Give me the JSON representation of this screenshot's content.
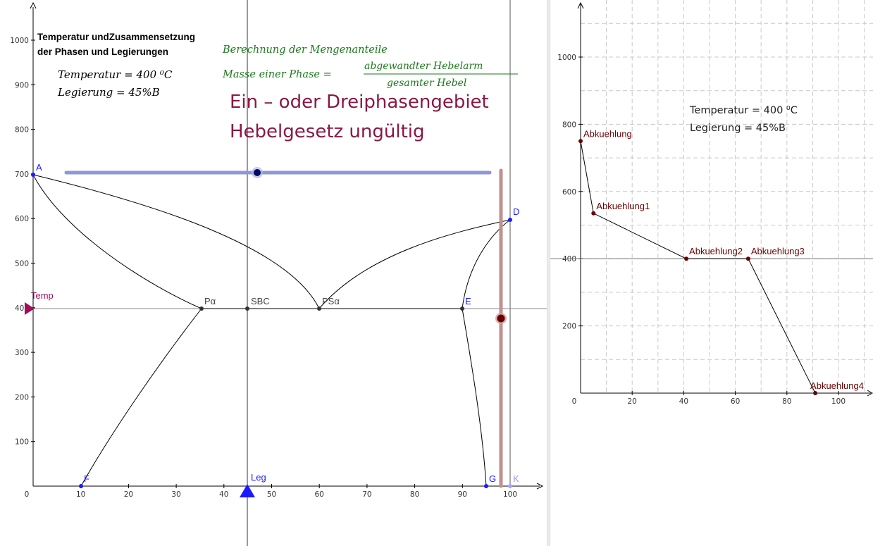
{
  "left_view": {
    "title_line1": "Temperatur undZusammensetzung",
    "title_line2": "der Phasen und Legierungen",
    "temp_formula": "Temperatur = 400 ⁰C",
    "alloy_formula": "Legierung = 45%B",
    "lever_heading": "Berechnung der Mengenanteile",
    "lever_lhs": "Masse einer Phase =",
    "lever_numerator": "abgewandter   Hebelarm",
    "lever_denominator": "gesamter   Hebel",
    "warning_line1": "Ein – oder Dreiphasengebiet",
    "warning_line2": "Hebelgesetz ungültig",
    "x_ticks": [
      "0",
      "10",
      "20",
      "30",
      "40",
      "50",
      "60",
      "70",
      "80",
      "90",
      "100"
    ],
    "y_ticks": [
      "100",
      "200",
      "300",
      "400",
      "500",
      "600",
      "700",
      "800",
      "900",
      "1000"
    ],
    "points": {
      "A": {
        "label": "A",
        "x": 0,
        "y": 700
      },
      "D": {
        "label": "D",
        "x": 100,
        "y": 600
      },
      "E": {
        "label": "E",
        "x": 90,
        "y": 400
      },
      "F": {
        "label": "F",
        "x": 10,
        "y": 0
      },
      "G": {
        "label": "G",
        "x": 95,
        "y": 0
      },
      "K": {
        "label": "K",
        "x": 100,
        "y": 0
      },
      "P": {
        "label": "Pα",
        "x": 35,
        "y": 400
      },
      "SBC": {
        "label": "SBC",
        "x": 45,
        "y": 400
      },
      "PS": {
        "label": "PSα",
        "x": 60,
        "y": 400
      }
    },
    "temp_slider": {
      "label": "Temp",
      "value": 400
    },
    "leg_slider": {
      "label": "Leg",
      "value": 45
    },
    "colors": {
      "point_blue": "#1a1aff",
      "magenta": "#a0105a",
      "slider_blue": "#8f96d6",
      "slider_brown": "#c09090",
      "dark_red": "#6b0000"
    }
  },
  "chart_data": {
    "type": "line",
    "title": "",
    "xlabel": "",
    "ylabel": "",
    "xlim": [
      0,
      110
    ],
    "ylim": [
      0,
      1100
    ],
    "x_ticks": [
      "0",
      "20",
      "40",
      "60",
      "80",
      "100"
    ],
    "y_ticks": [
      "200",
      "400",
      "600",
      "800",
      "1000"
    ],
    "grid": true,
    "reference_line_y": 400,
    "points": [
      {
        "label": "Abkuehlung",
        "x": 0,
        "y": 750
      },
      {
        "label": "Abkuehlung1",
        "x": 5,
        "y": 535
      },
      {
        "label": "Abkuehlung2",
        "x": 41,
        "y": 400
      },
      {
        "label": "Abkuehlung3",
        "x": 65,
        "y": 400
      },
      {
        "label": "Abkuehlung4",
        "x": 91,
        "y": 0
      }
    ]
  },
  "right_view": {
    "temp_text": "Temperatur = 400 ⁰C",
    "alloy_text": "Legierung = 45%B"
  }
}
